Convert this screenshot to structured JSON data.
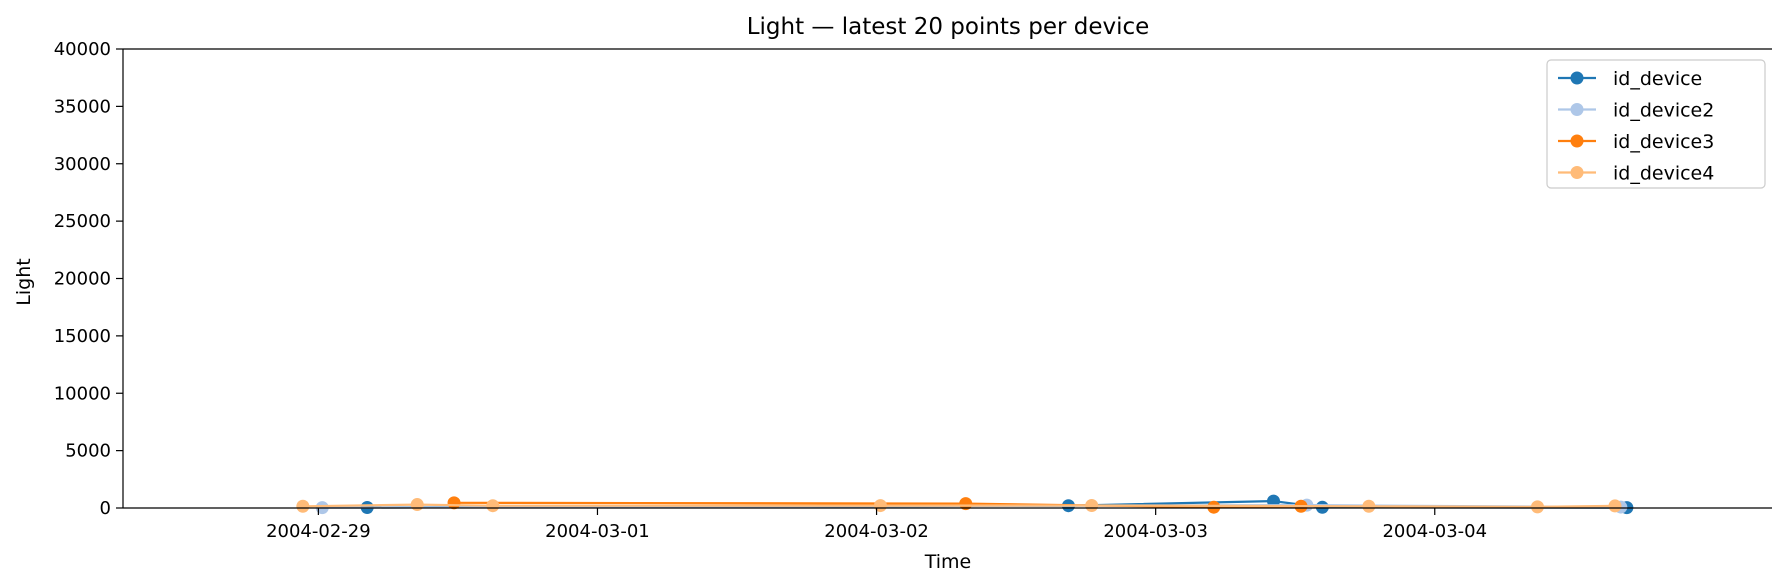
{
  "chart_data": {
    "type": "line",
    "title": "Light — latest 20 points per device",
    "xlabel": "Time",
    "ylabel": "Light",
    "ylim": [
      0,
      40000
    ],
    "xlim": [
      "2004-02-28 07:12",
      "2004-03-05 05:00"
    ],
    "yticks": [
      0,
      5000,
      10000,
      15000,
      20000,
      25000,
      30000,
      35000,
      40000
    ],
    "xticks": [
      "2004-02-29",
      "2004-03-01",
      "2004-03-02",
      "2004-03-03",
      "2004-03-04"
    ],
    "grid": false,
    "legend": "top-right",
    "series": [
      {
        "name": "id_device",
        "color": "#1f77b4",
        "points": [
          {
            "x": "2004-02-29 04:12",
            "y": 45
          },
          {
            "x": "2004-03-02 16:30",
            "y": 200
          },
          {
            "x": "2004-03-03 10:08",
            "y": 600
          },
          {
            "x": "2004-03-03 14:20",
            "y": 60
          },
          {
            "x": "2004-03-04 16:31",
            "y": 30
          }
        ]
      },
      {
        "name": "id_device2",
        "color": "#aec7e8",
        "points": [
          {
            "x": "2004-02-29 00:20",
            "y": 30
          },
          {
            "x": "2004-03-03 13:00",
            "y": 250
          },
          {
            "x": "2004-03-04 16:00",
            "y": 80
          }
        ]
      },
      {
        "name": "id_device3",
        "color": "#ff7f0e",
        "points": [
          {
            "x": "2004-02-29 11:40",
            "y": 450
          },
          {
            "x": "2004-03-02 07:40",
            "y": 380
          },
          {
            "x": "2004-03-03 05:00",
            "y": 70
          },
          {
            "x": "2004-03-03 12:30",
            "y": 150
          }
        ]
      },
      {
        "name": "id_device4",
        "color": "#ffbb78",
        "points": [
          {
            "x": "2004-02-28 22:40",
            "y": 150
          },
          {
            "x": "2004-02-29 08:30",
            "y": 300
          },
          {
            "x": "2004-02-29 15:00",
            "y": 200
          },
          {
            "x": "2004-03-02 00:20",
            "y": 210
          },
          {
            "x": "2004-03-02 18:30",
            "y": 220
          },
          {
            "x": "2004-03-03 18:20",
            "y": 150
          },
          {
            "x": "2004-03-04 08:50",
            "y": 100
          },
          {
            "x": "2004-03-04 15:30",
            "y": 180
          }
        ]
      }
    ]
  }
}
